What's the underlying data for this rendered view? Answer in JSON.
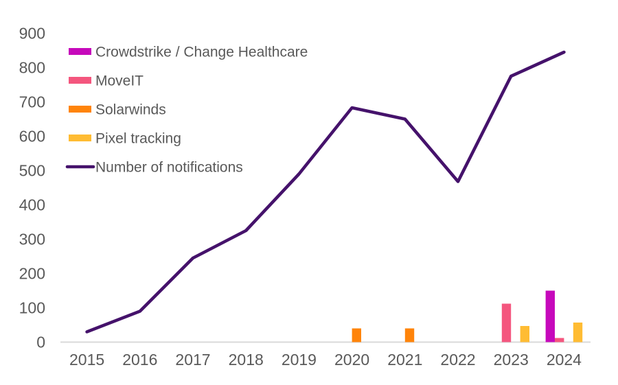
{
  "chart_data": {
    "type": "combo-bar-line",
    "title": "",
    "xlabel": "",
    "ylabel": "",
    "categories": [
      "2015",
      "2016",
      "2017",
      "2018",
      "2019",
      "2020",
      "2021",
      "2022",
      "2023",
      "2024"
    ],
    "bar_series": [
      {
        "name": "Crowdstrike / Change Healthcare",
        "color": "#C609BB",
        "values": [
          null,
          null,
          null,
          null,
          null,
          null,
          null,
          null,
          null,
          150
        ]
      },
      {
        "name": "MoveIT",
        "color": "#F4567E",
        "values": [
          null,
          null,
          null,
          null,
          null,
          null,
          null,
          null,
          112,
          12
        ]
      },
      {
        "name": "Solarwinds",
        "color": "#FF840A",
        "values": [
          null,
          null,
          null,
          null,
          null,
          40,
          40,
          null,
          null,
          null
        ]
      },
      {
        "name": "Pixel tracking",
        "color": "#FFBC33",
        "values": [
          null,
          null,
          null,
          null,
          null,
          null,
          null,
          null,
          47,
          57
        ]
      }
    ],
    "line_series": {
      "name": "Number of notifications",
      "color": "#45126B",
      "values": [
        30,
        90,
        245,
        325,
        490,
        683,
        650,
        468,
        775,
        845
      ]
    },
    "ylim": [
      0,
      900
    ],
    "yticks": [
      0,
      100,
      200,
      300,
      400,
      500,
      600,
      700,
      800,
      900
    ],
    "grid": "baseline-only",
    "legend_position": "top-left-inside",
    "legend_order": [
      "Crowdstrike / Change Healthcare",
      "MoveIT",
      "Solarwinds",
      "Pixel tracking",
      "Number of notifications"
    ],
    "colors": {
      "axis_text": "#595959",
      "legend_text": "#595959",
      "baseline": "#D9D9D9",
      "background": "#FFFFFF"
    }
  }
}
